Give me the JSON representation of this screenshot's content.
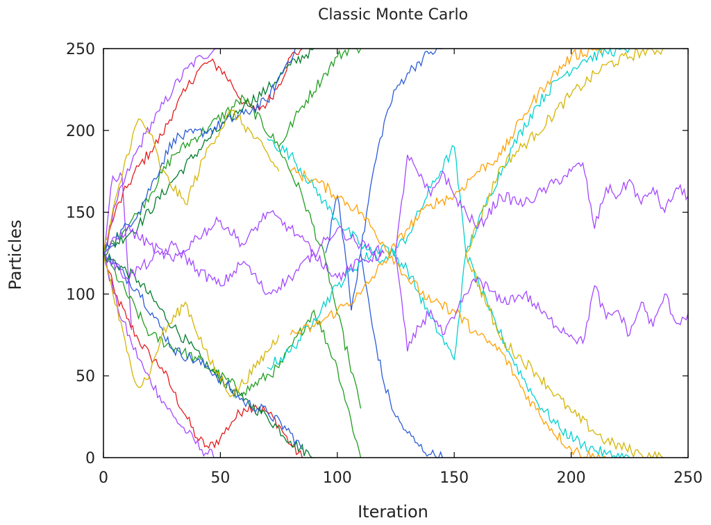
{
  "chart_data": {
    "type": "line",
    "title": "Classic Monte Carlo",
    "xlabel": "Iteration",
    "ylabel": "Particles",
    "xlim": [
      0,
      250
    ],
    "ylim": [
      0,
      250
    ],
    "xticks": [
      "0",
      "50",
      "100",
      "150",
      "200",
      "250"
    ],
    "yticks": [
      "0",
      "50",
      "100",
      "150",
      "200",
      "250"
    ],
    "grid": false,
    "legend": "none",
    "palette": [
      "#e41a1c",
      "#1f9e1f",
      "#2a5bd7",
      "#d4b400",
      "#a347ff",
      "#00d0d0",
      "#ff9f00",
      "#007a2a"
    ],
    "series": [
      {
        "color": "#e41a1c",
        "x": [
          0,
          5,
          10,
          15,
          20,
          25,
          30,
          35,
          40,
          45,
          50,
          55,
          60,
          65,
          70,
          75,
          80,
          85
        ],
        "y": [
          125,
          100,
          85,
          72,
          62,
          55,
          40,
          26,
          12,
          6,
          12,
          22,
          30,
          32,
          28,
          20,
          8,
          0
        ]
      },
      {
        "color": "#e41a1c",
        "x": [
          0,
          5,
          10,
          15,
          20,
          25,
          30,
          35,
          40,
          45,
          50,
          55,
          60,
          65,
          70,
          75,
          80,
          85
        ],
        "y": [
          125,
          150,
          165,
          178,
          187,
          197,
          212,
          224,
          236,
          242,
          238,
          228,
          217,
          212,
          217,
          228,
          245,
          250
        ]
      },
      {
        "color": "#a347ff",
        "x": [
          0,
          6,
          12,
          18,
          24,
          30,
          36,
          42,
          48,
          50
        ],
        "y": [
          125,
          92,
          70,
          52,
          38,
          25,
          15,
          5,
          0,
          0
        ]
      },
      {
        "color": "#a347ff",
        "x": [
          0,
          6,
          12,
          18,
          24,
          30,
          36,
          42,
          48,
          50
        ],
        "y": [
          125,
          158,
          180,
          198,
          212,
          226,
          238,
          245,
          250,
          250
        ]
      },
      {
        "color": "#a347ff",
        "x": [
          0,
          4,
          8,
          10,
          12
        ],
        "y": [
          125,
          172,
          172,
          125,
          78
        ]
      },
      {
        "color": "#007a2a",
        "x": [
          0,
          15,
          30,
          45,
          60,
          70,
          80,
          90
        ],
        "y": [
          125,
          108,
          80,
          55,
          35,
          25,
          10,
          0
        ]
      },
      {
        "color": "#007a2a",
        "x": [
          0,
          15,
          30,
          45,
          60,
          70,
          80,
          90
        ],
        "y": [
          125,
          142,
          170,
          195,
          215,
          225,
          240,
          250
        ]
      },
      {
        "color": "#1f9e1f",
        "x": [
          0,
          15,
          30,
          45,
          60,
          75,
          85,
          95,
          100,
          105,
          110
        ],
        "y": [
          125,
          150,
          185,
          202,
          220,
          190,
          160,
          120,
          88,
          60,
          30
        ]
      },
      {
        "color": "#1f9e1f",
        "x": [
          0,
          20,
          40,
          60,
          75,
          90,
          100,
          110
        ],
        "y": [
          125,
          75,
          60,
          40,
          55,
          90,
          55,
          0
        ]
      },
      {
        "color": "#1f9e1f",
        "x": [
          75,
          85,
          95,
          100,
          105,
          110
        ],
        "y": [
          190,
          215,
          235,
          245,
          250,
          250
        ]
      },
      {
        "color": "#2a5bd7",
        "x": [
          0,
          15,
          30,
          45,
          60,
          70,
          80,
          85
        ],
        "y": [
          125,
          102,
          66,
          55,
          34,
          28,
          15,
          5
        ]
      },
      {
        "color": "#2a5bd7",
        "x": [
          0,
          15,
          30,
          45,
          60,
          70,
          78,
          82
        ],
        "y": [
          125,
          150,
          195,
          200,
          210,
          218,
          240,
          250
        ]
      },
      {
        "color": "#2a5bd7",
        "x": [
          110,
          115,
          120,
          125,
          130,
          135,
          140,
          145
        ],
        "y": [
          125,
          172,
          205,
          225,
          235,
          242,
          248,
          250
        ]
      },
      {
        "color": "#2a5bd7",
        "x": [
          110,
          115,
          120,
          125,
          130,
          135,
          140,
          145
        ],
        "y": [
          125,
          80,
          45,
          25,
          15,
          7,
          2,
          0
        ]
      },
      {
        "color": "#2a5bd7",
        "x": [
          95,
          100,
          103,
          106,
          110
        ],
        "y": [
          125,
          160,
          130,
          90,
          125
        ]
      },
      {
        "color": "#00d0d0",
        "x": [
          70,
          80,
          90,
          100,
          110,
          120,
          130,
          140,
          150,
          155
        ],
        "y": [
          195,
          185,
          165,
          145,
          130,
          120,
          135,
          165,
          190,
          125
        ]
      },
      {
        "color": "#00d0d0",
        "x": [
          70,
          80,
          90,
          100,
          110,
          120,
          130,
          140,
          150,
          155
        ],
        "y": [
          55,
          65,
          85,
          105,
          120,
          130,
          115,
          85,
          60,
          125
        ]
      },
      {
        "color": "#00d0d0",
        "x": [
          155,
          165,
          175,
          185,
          195,
          205,
          215,
          225
        ],
        "y": [
          125,
          160,
          190,
          215,
          232,
          243,
          248,
          250
        ]
      },
      {
        "color": "#00d0d0",
        "x": [
          155,
          165,
          175,
          185,
          195,
          205,
          215,
          225
        ],
        "y": [
          125,
          90,
          60,
          35,
          18,
          8,
          2,
          0
        ]
      },
      {
        "color": "#d4b400",
        "x": [
          0,
          10,
          15,
          20,
          25,
          35,
          45,
          55,
          65,
          75
        ],
        "y": [
          125,
          185,
          207,
          198,
          175,
          155,
          190,
          212,
          195,
          175
        ]
      },
      {
        "color": "#d4b400",
        "x": [
          0,
          10,
          15,
          20,
          25,
          35,
          45,
          55,
          65,
          75
        ],
        "y": [
          125,
          65,
          43,
          52,
          75,
          95,
          60,
          38,
          55,
          75
        ]
      },
      {
        "color": "#d4b400",
        "x": [
          155,
          170,
          185,
          200,
          215,
          230,
          240
        ],
        "y": [
          125,
          178,
          198,
          222,
          240,
          248,
          250
        ]
      },
      {
        "color": "#d4b400",
        "x": [
          155,
          170,
          185,
          200,
          215,
          230,
          240
        ],
        "y": [
          125,
          72,
          52,
          28,
          10,
          2,
          0
        ]
      },
      {
        "color": "#ff9f00",
        "x": [
          80,
          90,
          100,
          110,
          120,
          130,
          140,
          150
        ],
        "y": [
          175,
          170,
          160,
          150,
          130,
          110,
          95,
          90
        ]
      },
      {
        "color": "#ff9f00",
        "x": [
          80,
          90,
          100,
          110,
          120,
          130,
          140,
          150
        ],
        "y": [
          75,
          80,
          90,
          100,
          120,
          140,
          155,
          160
        ]
      },
      {
        "color": "#ff9f00",
        "x": [
          150,
          160,
          170,
          180,
          190,
          200,
          210,
          215
        ],
        "y": [
          160,
          175,
          185,
          210,
          230,
          245,
          250,
          250
        ]
      },
      {
        "color": "#ff9f00",
        "x": [
          150,
          160,
          170,
          180,
          190,
          200,
          210,
          215
        ],
        "y": [
          90,
          75,
          65,
          40,
          20,
          5,
          0,
          0
        ]
      },
      {
        "color": "#a347ff",
        "x": [
          0,
          10,
          20,
          30,
          40,
          50,
          60,
          70,
          80,
          90,
          100,
          110,
          120
        ],
        "y": [
          125,
          140,
          130,
          120,
          135,
          145,
          130,
          150,
          140,
          125,
          140,
          130,
          125
        ]
      },
      {
        "color": "#a347ff",
        "x": [
          0,
          10,
          20,
          30,
          40,
          50,
          60,
          70,
          80,
          90,
          100,
          110,
          120
        ],
        "y": [
          125,
          110,
          120,
          130,
          115,
          105,
          120,
          100,
          110,
          125,
          110,
          120,
          125
        ]
      },
      {
        "color": "#a347ff",
        "x": [
          125,
          130,
          135,
          140,
          145,
          150,
          155,
          160,
          170,
          180,
          190,
          200,
          205,
          210,
          215,
          220,
          225,
          230,
          235,
          240,
          245,
          250
        ],
        "y": [
          125,
          185,
          172,
          160,
          175,
          160,
          150,
          140,
          160,
          155,
          165,
          175,
          180,
          140,
          165,
          160,
          170,
          155,
          165,
          150,
          165,
          160
        ]
      },
      {
        "color": "#a347ff",
        "x": [
          125,
          130,
          135,
          140,
          145,
          150,
          155,
          160,
          170,
          180,
          190,
          200,
          205,
          210,
          215,
          220,
          225,
          230,
          235,
          240,
          245,
          250
        ],
        "y": [
          125,
          65,
          80,
          90,
          75,
          85,
          100,
          110,
          95,
          100,
          85,
          75,
          70,
          105,
          85,
          90,
          75,
          95,
          80,
          100,
          82,
          88
        ]
      }
    ]
  }
}
